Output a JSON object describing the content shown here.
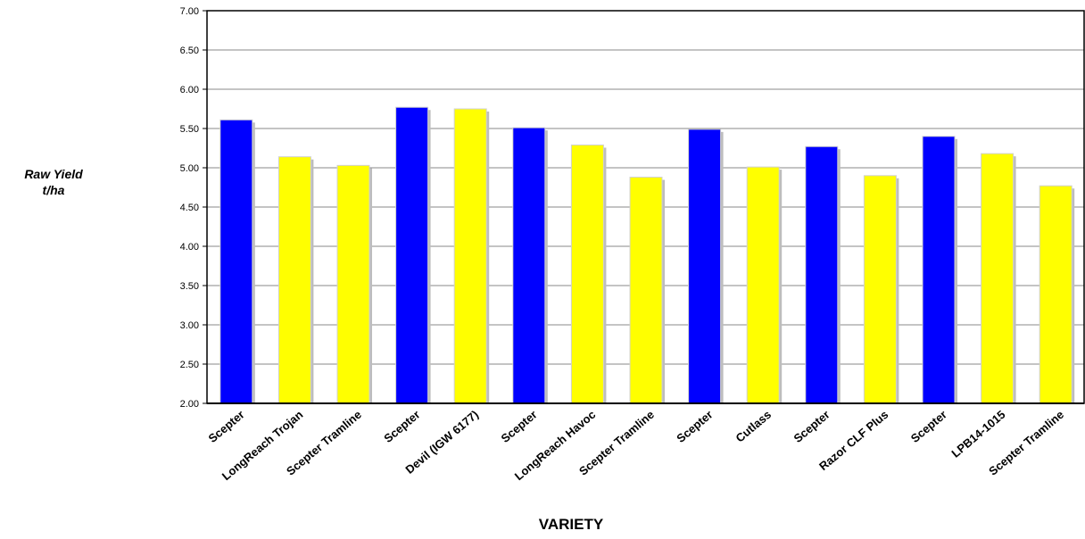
{
  "chart_data": {
    "type": "bar",
    "title": "",
    "xlabel": "VARIETY",
    "ylabel_line1": "Raw Yield",
    "ylabel_line2": "t/ha",
    "ylim": [
      2.0,
      7.0
    ],
    "yticks": [
      "2.00",
      "2.50",
      "3.00",
      "3.50",
      "4.00",
      "4.50",
      "5.00",
      "5.50",
      "6.00",
      "6.50",
      "7.00"
    ],
    "grid": true,
    "categories": [
      "Scepter",
      "LongReach Trojan",
      "Scepter Tramline",
      "Scepter",
      "Devil (IGW 6177)",
      "Scepter",
      "LongReach Havoc",
      "Scepter Tramline",
      "Scepter",
      "Cutlass",
      "Scepter",
      "Razor CLF Plus",
      "Scepter",
      "LPB14-1015",
      "Scepter Tramline"
    ],
    "values": [
      5.61,
      5.14,
      5.03,
      5.77,
      5.75,
      5.51,
      5.29,
      4.88,
      5.49,
      5.01,
      5.27,
      4.9,
      5.4,
      5.18,
      4.77
    ],
    "bar_colors": [
      "#0000ff",
      "#ffff00",
      "#ffff00",
      "#0000ff",
      "#ffff00",
      "#0000ff",
      "#ffff00",
      "#ffff00",
      "#0000ff",
      "#ffff00",
      "#0000ff",
      "#ffff00",
      "#0000ff",
      "#ffff00",
      "#ffff00"
    ]
  }
}
